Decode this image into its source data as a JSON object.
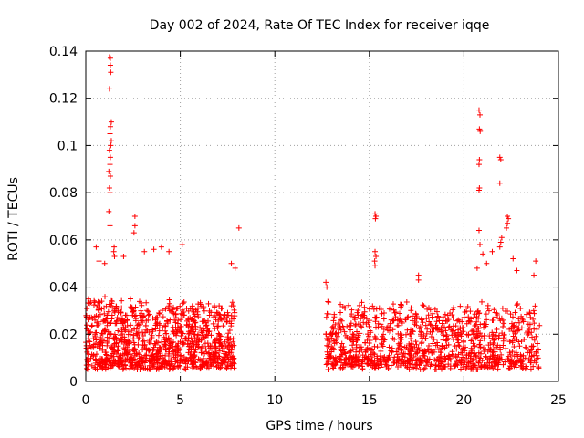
{
  "chart_data": {
    "type": "scatter",
    "title": "Day 002 of 2024, Rate Of TEC Index for receiver iqqe",
    "xlabel": "GPS time / hours",
    "ylabel": "ROTI / TECUs",
    "xlim": [
      0,
      25
    ],
    "ylim": [
      0,
      0.14
    ],
    "xticks": [
      0,
      5,
      10,
      15,
      20,
      25
    ],
    "yticks": [
      0,
      0.02,
      0.04,
      0.06,
      0.08,
      0.1,
      0.12,
      0.14
    ],
    "xtick_labels": [
      "0",
      "5",
      "10",
      "15",
      "20",
      "25"
    ],
    "ytick_labels": [
      "0",
      "0.02",
      "0.04",
      "0.06",
      "0.08",
      "0.1",
      "0.12",
      "0.14"
    ],
    "grid": true,
    "marker": "+",
    "color": "#ff0000",
    "series": [
      {
        "name": "ROTI",
        "segments": [
          {
            "t_start": 0.0,
            "t_end": 7.9,
            "base": 0.018,
            "spread": 0.016,
            "count": 1100
          },
          {
            "t_start": 12.7,
            "t_end": 24.0,
            "base": 0.016,
            "spread": 0.015,
            "count": 1100
          }
        ],
        "points": [
          [
            1.25,
            0.1375
          ],
          [
            1.3,
            0.137
          ],
          [
            1.3,
            0.134
          ],
          [
            1.32,
            0.131
          ],
          [
            1.25,
            0.124
          ],
          [
            1.35,
            0.11
          ],
          [
            1.3,
            0.108
          ],
          [
            1.28,
            0.105
          ],
          [
            1.35,
            0.102
          ],
          [
            1.32,
            0.1
          ],
          [
            1.25,
            0.098
          ],
          [
            1.3,
            0.095
          ],
          [
            1.28,
            0.092
          ],
          [
            1.22,
            0.089
          ],
          [
            1.3,
            0.087
          ],
          [
            1.25,
            0.082
          ],
          [
            1.28,
            0.08
          ],
          [
            1.22,
            0.072
          ],
          [
            1.28,
            0.066
          ],
          [
            2.6,
            0.07
          ],
          [
            2.6,
            0.066
          ],
          [
            2.55,
            0.063
          ],
          [
            1.5,
            0.057
          ],
          [
            1.48,
            0.055
          ],
          [
            1.52,
            0.053
          ],
          [
            0.55,
            0.057
          ],
          [
            4.4,
            0.055
          ],
          [
            5.1,
            0.058
          ],
          [
            7.9,
            0.048
          ],
          [
            7.7,
            0.05
          ],
          [
            8.1,
            0.065
          ],
          [
            3.1,
            0.055
          ],
          [
            3.6,
            0.056
          ],
          [
            4.0,
            0.057
          ],
          [
            2.0,
            0.053
          ],
          [
            1.0,
            0.05
          ],
          [
            0.7,
            0.051
          ],
          [
            15.3,
            0.071
          ],
          [
            15.35,
            0.07
          ],
          [
            15.32,
            0.069
          ],
          [
            15.3,
            0.055
          ],
          [
            15.35,
            0.053
          ],
          [
            15.28,
            0.051
          ],
          [
            15.3,
            0.049
          ],
          [
            17.6,
            0.045
          ],
          [
            17.6,
            0.043
          ],
          [
            12.7,
            0.042
          ],
          [
            12.75,
            0.04
          ],
          [
            20.8,
            0.115
          ],
          [
            20.85,
            0.113
          ],
          [
            20.82,
            0.107
          ],
          [
            20.86,
            0.106
          ],
          [
            20.82,
            0.094
          ],
          [
            20.8,
            0.092
          ],
          [
            20.82,
            0.082
          ],
          [
            20.8,
            0.081
          ],
          [
            21.9,
            0.095
          ],
          [
            21.95,
            0.094
          ],
          [
            21.9,
            0.084
          ],
          [
            22.3,
            0.07
          ],
          [
            22.35,
            0.069
          ],
          [
            22.3,
            0.067
          ],
          [
            22.25,
            0.065
          ],
          [
            22.0,
            0.061
          ],
          [
            21.95,
            0.059
          ],
          [
            21.9,
            0.057
          ],
          [
            20.8,
            0.064
          ],
          [
            20.85,
            0.058
          ],
          [
            21.5,
            0.055
          ],
          [
            21.0,
            0.054
          ],
          [
            23.8,
            0.051
          ],
          [
            23.7,
            0.045
          ],
          [
            22.6,
            0.052
          ],
          [
            22.8,
            0.047
          ],
          [
            20.7,
            0.048
          ],
          [
            21.2,
            0.05
          ]
        ]
      }
    ]
  }
}
